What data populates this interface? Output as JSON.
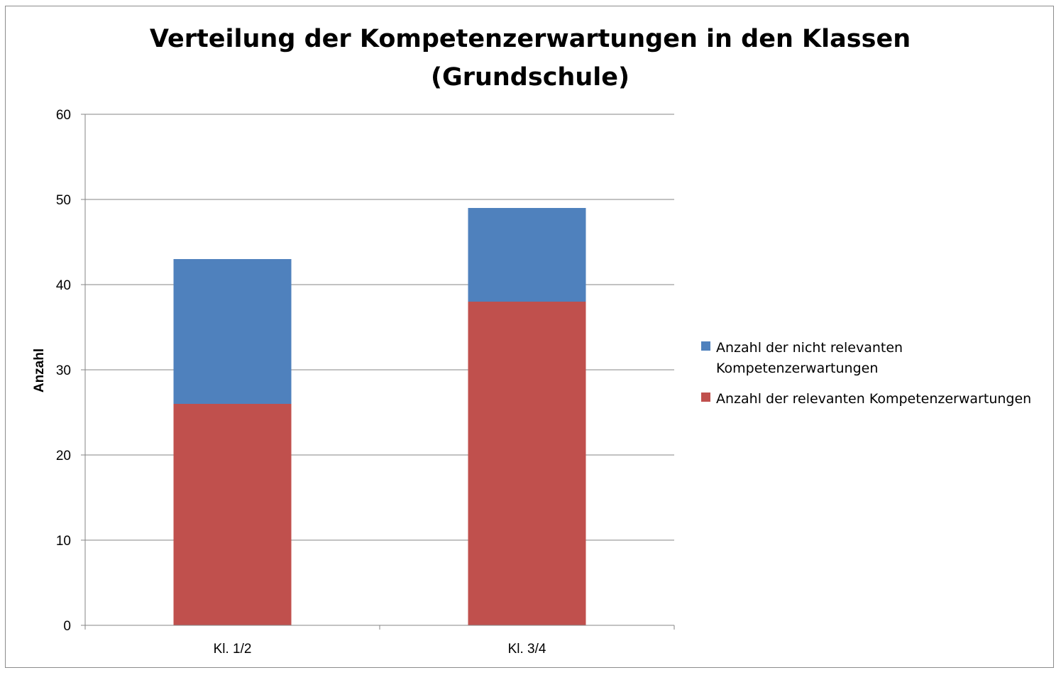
{
  "chart_data": {
    "type": "bar",
    "stacked": true,
    "title": "Verteilung der Kompetenzerwartungen in den Klassen",
    "subtitle": "(Grundschule)",
    "xlabel": "",
    "ylabel": "Anzahl",
    "ylim": [
      0,
      60
    ],
    "yticks": [
      0,
      10,
      20,
      30,
      40,
      50,
      60
    ],
    "grid": true,
    "legend_position": "right",
    "categories": [
      "Kl. 1/2",
      "Kl. 3/4"
    ],
    "series": [
      {
        "name": "Anzahl der relevanten Kompetenzerwartungen",
        "color": "#c0504d",
        "values": [
          26,
          38
        ]
      },
      {
        "name": "Anzahl der nicht relevanten Kompetenzerwartungen",
        "color": "#4f81bd",
        "values": [
          17,
          11
        ]
      }
    ]
  }
}
